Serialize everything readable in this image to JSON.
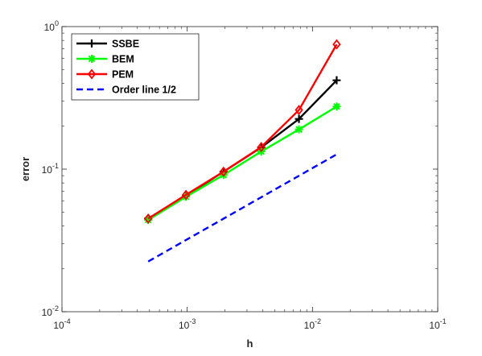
{
  "chart_data": {
    "type": "line",
    "xscale": "log",
    "yscale": "log",
    "xlim": [
      0.0001,
      0.1
    ],
    "ylim": [
      0.01,
      1
    ],
    "xlabel": "h",
    "ylabel": "error",
    "grid": false,
    "legend_position": "top-left",
    "x_ticks": [
      {
        "value": 0.0001,
        "base": "10",
        "exp": "-4"
      },
      {
        "value": 0.001,
        "base": "10",
        "exp": "-3"
      },
      {
        "value": 0.01,
        "base": "10",
        "exp": "-2"
      },
      {
        "value": 0.1,
        "base": "10",
        "exp": "-1"
      }
    ],
    "y_ticks": [
      {
        "value": 0.01,
        "base": "10",
        "exp": "-2"
      },
      {
        "value": 0.1,
        "base": "10",
        "exp": "-1"
      },
      {
        "value": 1,
        "base": "10",
        "exp": "0"
      }
    ],
    "series": [
      {
        "name": "SSBE",
        "color": "#000000",
        "marker": "plus",
        "dash": "",
        "x": [
          0.000488,
          0.000977,
          0.00195,
          0.0039,
          0.0078,
          0.0156
        ],
        "y": [
          0.045,
          0.065,
          0.096,
          0.142,
          0.225,
          0.42
        ]
      },
      {
        "name": "BEM",
        "color": "#00ff00",
        "marker": "asterisk",
        "dash": "",
        "x": [
          0.000488,
          0.000977,
          0.00195,
          0.0039,
          0.0078,
          0.0156
        ],
        "y": [
          0.044,
          0.064,
          0.091,
          0.133,
          0.19,
          0.275
        ]
      },
      {
        "name": "PEM",
        "color": "#ff0000",
        "marker": "diamond",
        "dash": "",
        "x": [
          0.000488,
          0.000977,
          0.00195,
          0.0039,
          0.0078,
          0.0156
        ],
        "y": [
          0.045,
          0.066,
          0.096,
          0.143,
          0.26,
          0.75
        ]
      },
      {
        "name": "Order line 1/2",
        "color": "#0000ff",
        "marker": "none",
        "dash": "8,5",
        "x": [
          0.000488,
          0.0156
        ],
        "y": [
          0.0225,
          0.127
        ]
      }
    ]
  }
}
